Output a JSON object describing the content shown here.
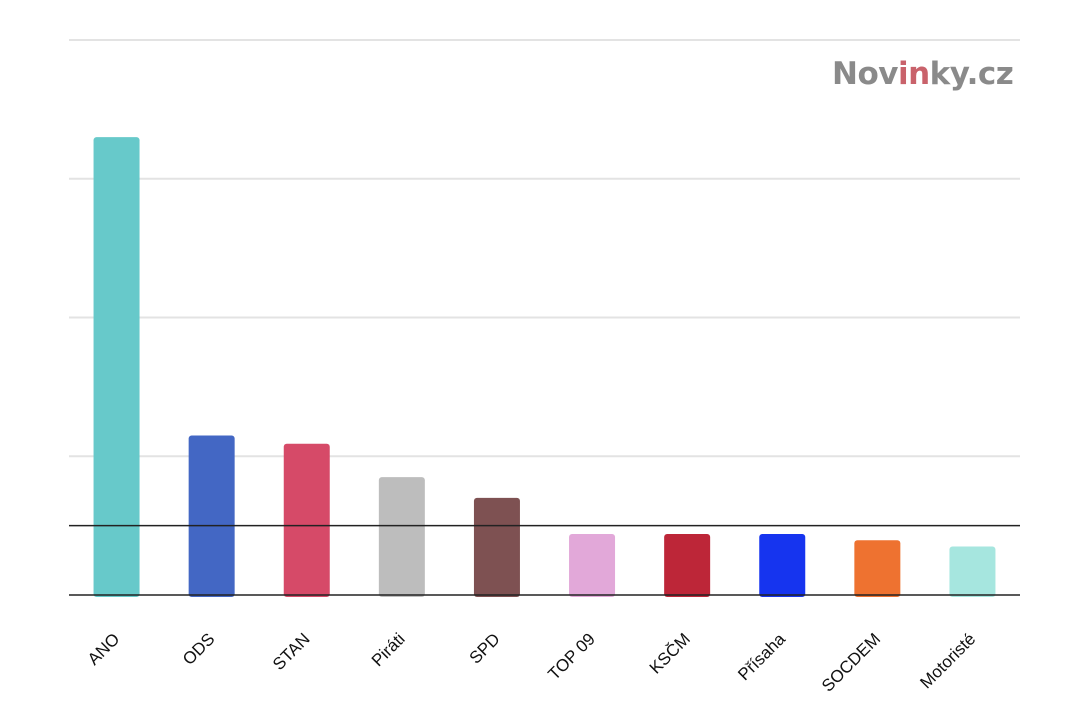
{
  "brand": {
    "part1": "Nov",
    "part2": "in",
    "part3": "ky.cz",
    "colors": {
      "gray": "#8a8a8a",
      "accent": "#c9626b"
    }
  },
  "chart_data": {
    "type": "bar",
    "categories": [
      "ANO",
      "ODS",
      "STAN",
      "Piráti",
      "SPD",
      "TOP 09",
      "KSČM",
      "Přísaha",
      "SOCDEM",
      "Motoristé"
    ],
    "values": [
      33,
      11.5,
      10.9,
      8.5,
      7.0,
      4.4,
      4.4,
      4.4,
      3.95,
      3.5
    ],
    "colors": [
      "#67c9ca",
      "#4367c4",
      "#d64a68",
      "#bdbdbd",
      "#7e5152",
      "#e2a8d9",
      "#bd2638",
      "#1634ef",
      "#ee7230",
      "#a6e6df"
    ],
    "ylim": [
      0,
      40
    ],
    "threshold": 5,
    "grid": true,
    "title": "",
    "xlabel": "",
    "ylabel": ""
  }
}
